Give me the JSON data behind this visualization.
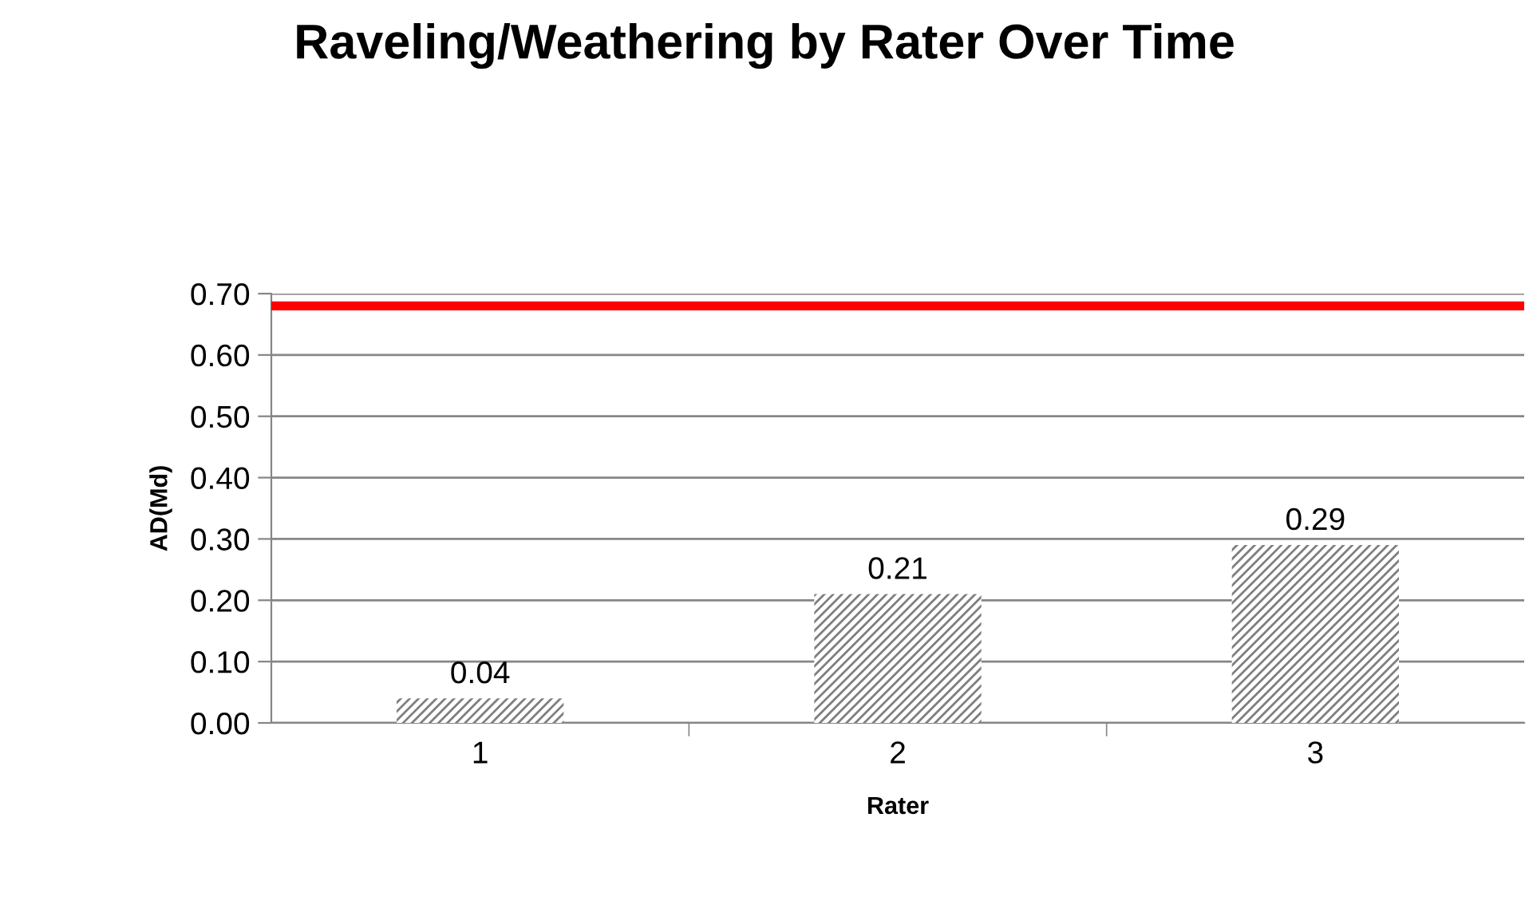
{
  "chart_data": {
    "type": "bar",
    "title": "Raveling/Weathering by Rater Over Time",
    "xlabel": "Rater",
    "ylabel": "AD(Md)",
    "categories": [
      "1",
      "2",
      "3"
    ],
    "values": [
      0.04,
      0.21,
      0.29
    ],
    "color": "#7f7f7f",
    "value_labels": [
      "0.04",
      "0.21",
      "0.29"
    ],
    "ylim": [
      0,
      0.7
    ],
    "yticks": [
      {
        "value": 0,
        "label": "0.00"
      },
      {
        "value": 0.1,
        "label": "0.10"
      },
      {
        "value": 0.2,
        "label": "0.20"
      },
      {
        "value": 0.3,
        "label": "0.30"
      },
      {
        "value": 0.4,
        "label": "0.40"
      },
      {
        "value": 0.5,
        "label": "0.50"
      },
      {
        "value": 0.6,
        "label": "0.60"
      },
      {
        "value": 0.7,
        "label": "0.70"
      }
    ],
    "ref_lines": [
      {
        "axis": "y",
        "value": 0.68,
        "color": "#ff0000"
      }
    ],
    "grid": "y",
    "legend": false
  }
}
